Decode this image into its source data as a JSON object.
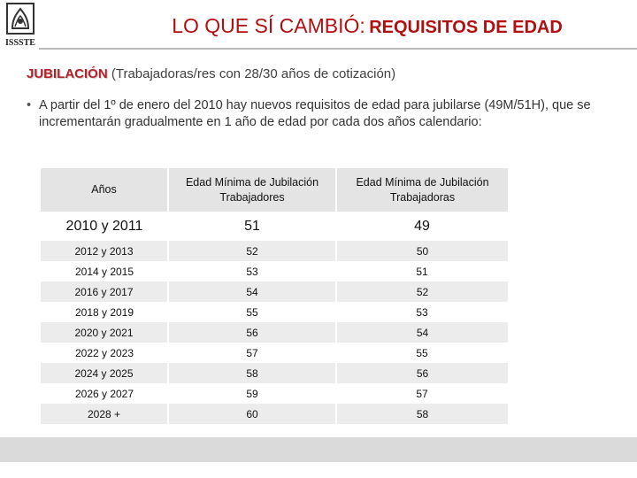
{
  "header": {
    "logo_text": "ISSSTE",
    "title_main": "LO QUE SÍ CAMBIÓ:",
    "title_sub": "REQUISITOS DE EDAD"
  },
  "section": {
    "heading": "JUBILACIÓN",
    "note": "(Trabajadoras/res con 28/30 años de cotización)"
  },
  "bullet": {
    "text": "A partir del 1º de enero del 2010 hay nuevos requisitos de edad para jubilarse (49M/51H), que se incrementarán gradualmente en 1 año de edad por cada dos años calendario:"
  },
  "table": {
    "headers": [
      "Años",
      "Edad Mínima de Jubilación Trabajadores",
      "Edad Mínima de Jubilación Trabajadoras"
    ],
    "rows": [
      [
        "2010 y 2011",
        "51",
        "49"
      ],
      [
        "2012 y 2013",
        "52",
        "50"
      ],
      [
        "2014 y 2015",
        "53",
        "51"
      ],
      [
        "2016 y 2017",
        "54",
        "52"
      ],
      [
        "2018 y 2019",
        "55",
        "53"
      ],
      [
        "2020 y 2021",
        "56",
        "54"
      ],
      [
        "2022 y 2023",
        "57",
        "55"
      ],
      [
        "2024 y 2025",
        "58",
        "56"
      ],
      [
        "2026 y 2027",
        "59",
        "57"
      ],
      [
        "2028 +",
        "60",
        "58"
      ]
    ]
  }
}
